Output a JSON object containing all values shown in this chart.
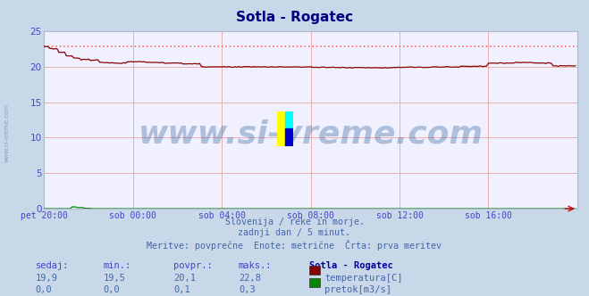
{
  "title": "Sotla - Rogatec",
  "bg_color": "#c8d8e8",
  "plot_bg_color": "#f0f0ff",
  "grid_color": "#e8b0b0",
  "title_color": "#000080",
  "tick_color": "#4444cc",
  "text_color": "#4466aa",
  "ylim": [
    0,
    25
  ],
  "yticks": [
    0,
    5,
    10,
    15,
    20,
    25
  ],
  "xlim": [
    0,
    288
  ],
  "xtick_labels": [
    "pet 20:00",
    "sob 00:00",
    "sob 04:00",
    "sob 08:00",
    "sob 12:00",
    "sob 16:00"
  ],
  "xtick_positions": [
    0,
    48,
    96,
    144,
    192,
    240
  ],
  "footer_lines": [
    "Slovenija / reke in morje.",
    "zadnji dan / 5 minut.",
    "Meritve: povprečne  Enote: metrične  Črta: prva meritev"
  ],
  "table_headers": [
    "sedaj:",
    "min.:",
    "povpr.:",
    "maks.:",
    "Sotla - Rogatec"
  ],
  "table_row1": [
    "19,9",
    "19,5",
    "20,1",
    "22,8"
  ],
  "table_row2": [
    "0,0",
    "0,0",
    "0,1",
    "0,3"
  ],
  "label_temp": "temperatura[C]",
  "label_flow": "pretok[m3/s]",
  "color_temp": "#880000",
  "color_flow": "#008800",
  "dashed_line_color": "#ff6666",
  "dashed_line_y": 22.8,
  "watermark": "www.si-vreme.com",
  "watermark_color": "#336699",
  "watermark_alpha": 0.35,
  "watermark_fontsize": 26,
  "side_text": "www.si-vreme.com",
  "side_text_color": "#5577aa",
  "side_text_alpha": 0.6
}
